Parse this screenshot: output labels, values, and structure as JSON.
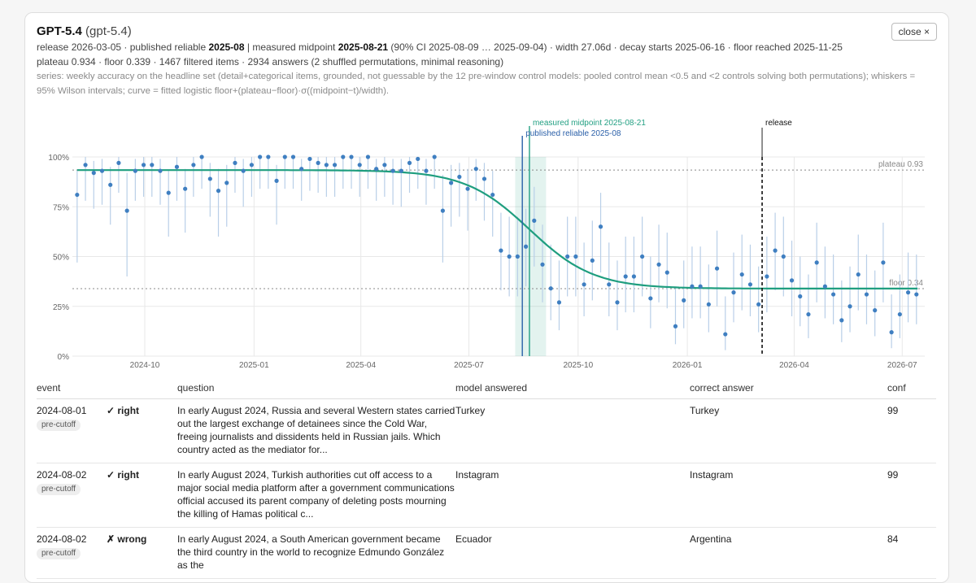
{
  "header": {
    "model_name": "GPT-5.4",
    "model_id": "(gpt-5.4)",
    "close_label": "close ×",
    "line1": {
      "release_prefix": "release 2026-03-05 · published reliable ",
      "published_reliable": "2025-08",
      "sep": " | measured midpoint ",
      "midpoint": "2025-08-21",
      "rest": " (90% CI 2025-08-09 … 2025-09-04) · width 27.06d · decay starts 2025-06-16 · floor reached 2025-11-25"
    },
    "line2": "plateau 0.934 · floor 0.339 · 1467 filtered items · 2934 answers (2 shuffled permutations, minimal reasoning)",
    "series_note": "series: weekly accuracy on the headline set (detail+categorical items, grounded, not guessable by the 12 pre-window control models: pooled control mean <0.5 and <2 controls solving both permutations); whiskers = 95% Wilson intervals; curve = fitted logistic floor+(plateau−floor)·σ((midpoint−t)/width)."
  },
  "chart_data": {
    "type": "scatter",
    "x_ticks": [
      "2024-10",
      "2025-01",
      "2025-04",
      "2025-07",
      "2025-10",
      "2026-01",
      "2026-04",
      "2026-07"
    ],
    "y_ticks": [
      "0%",
      "25%",
      "50%",
      "75%",
      "100%"
    ],
    "ylim": [
      0,
      1
    ],
    "xlim": [
      "2024-08-01",
      "2026-07-20"
    ],
    "plateau": 0.934,
    "floor": 0.339,
    "plateau_label": "plateau 0.93",
    "floor_label": "floor 0.34",
    "midpoint": "2025-08-21",
    "midpoint_ci": [
      "2025-08-09",
      "2025-09-04"
    ],
    "width_days": 27.06,
    "decay_start": "2025-06-16",
    "floor_reached": "2025-11-25",
    "published_reliable": "2025-08-15",
    "release": "2026-03-05",
    "midpoint_label": "measured midpoint 2025-08-21",
    "published_label": "published reliable 2025-08",
    "release_label": "release",
    "colors": {
      "points": "#3f7fc1",
      "whisker": "#b9cfe8",
      "curve": "#1f9e7f",
      "midpoint": "#23a083",
      "published": "#2a5fa8",
      "release": "#111111",
      "grid": "#e8e8e8"
    },
    "points": [
      [
        "2024-08-05",
        0.81,
        0.47,
        0.93
      ],
      [
        "2024-08-12",
        0.96,
        0.78,
        1.0
      ],
      [
        "2024-08-19",
        0.92,
        0.74,
        0.98
      ],
      [
        "2024-08-26",
        0.93,
        0.76,
        0.99
      ],
      [
        "2024-09-02",
        0.86,
        0.66,
        0.95
      ],
      [
        "2024-09-09",
        0.97,
        0.82,
        1.0
      ],
      [
        "2024-09-16",
        0.73,
        0.4,
        0.92
      ],
      [
        "2024-09-23",
        0.93,
        0.78,
        0.99
      ],
      [
        "2024-09-30",
        0.96,
        0.8,
        1.0
      ],
      [
        "2024-10-07",
        0.96,
        0.8,
        1.0
      ],
      [
        "2024-10-14",
        0.93,
        0.76,
        0.99
      ],
      [
        "2024-10-21",
        0.82,
        0.6,
        0.93
      ],
      [
        "2024-10-28",
        0.95,
        0.78,
        1.0
      ],
      [
        "2024-11-04",
        0.84,
        0.62,
        0.94
      ],
      [
        "2024-11-11",
        0.96,
        0.8,
        1.0
      ],
      [
        "2024-11-18",
        1.0,
        0.84,
        1.0
      ],
      [
        "2024-11-25",
        0.89,
        0.7,
        0.97
      ],
      [
        "2024-12-02",
        0.83,
        0.6,
        0.94
      ],
      [
        "2024-12-09",
        0.87,
        0.65,
        0.96
      ],
      [
        "2024-12-16",
        0.97,
        0.82,
        1.0
      ],
      [
        "2024-12-23",
        0.93,
        0.75,
        0.99
      ],
      [
        "2024-12-30",
        0.96,
        0.8,
        1.0
      ],
      [
        "2025-01-06",
        1.0,
        0.84,
        1.0
      ],
      [
        "2025-01-13",
        1.0,
        0.84,
        1.0
      ],
      [
        "2025-01-20",
        0.88,
        0.66,
        0.96
      ],
      [
        "2025-01-27",
        1.0,
        0.84,
        1.0
      ],
      [
        "2025-02-03",
        1.0,
        0.84,
        1.0
      ],
      [
        "2025-02-10",
        0.94,
        0.78,
        0.99
      ],
      [
        "2025-02-17",
        0.99,
        0.83,
        1.0
      ],
      [
        "2025-02-24",
        0.97,
        0.82,
        1.0
      ],
      [
        "2025-03-03",
        0.96,
        0.8,
        1.0
      ],
      [
        "2025-03-10",
        0.96,
        0.8,
        1.0
      ],
      [
        "2025-03-17",
        1.0,
        0.84,
        1.0
      ],
      [
        "2025-03-24",
        1.0,
        0.84,
        1.0
      ],
      [
        "2025-03-31",
        0.96,
        0.8,
        1.0
      ],
      [
        "2025-04-07",
        1.0,
        0.84,
        1.0
      ],
      [
        "2025-04-14",
        0.94,
        0.78,
        0.99
      ],
      [
        "2025-04-21",
        0.96,
        0.8,
        1.0
      ],
      [
        "2025-04-28",
        0.93,
        0.76,
        0.99
      ],
      [
        "2025-05-05",
        0.93,
        0.75,
        0.99
      ],
      [
        "2025-05-12",
        0.97,
        0.82,
        1.0
      ],
      [
        "2025-05-19",
        0.99,
        0.84,
        1.0
      ],
      [
        "2025-05-26",
        0.93,
        0.76,
        0.99
      ],
      [
        "2025-06-02",
        1.0,
        0.84,
        1.0
      ],
      [
        "2025-06-09",
        0.73,
        0.47,
        0.91
      ],
      [
        "2025-06-16",
        0.87,
        0.65,
        0.96
      ],
      [
        "2025-06-23",
        0.9,
        0.7,
        0.97
      ],
      [
        "2025-06-30",
        0.84,
        0.63,
        0.94
      ],
      [
        "2025-07-07",
        0.94,
        0.78,
        0.99
      ],
      [
        "2025-07-14",
        0.89,
        0.68,
        0.97
      ],
      [
        "2025-07-21",
        0.81,
        0.6,
        0.93
      ],
      [
        "2025-07-28",
        0.53,
        0.33,
        0.72
      ],
      [
        "2025-08-04",
        0.5,
        0.3,
        0.7
      ],
      [
        "2025-08-11",
        0.5,
        0.3,
        0.7
      ],
      [
        "2025-08-18",
        0.55,
        0.35,
        0.74
      ],
      [
        "2025-08-25",
        0.68,
        0.45,
        0.85
      ],
      [
        "2025-09-01",
        0.46,
        0.27,
        0.66
      ],
      [
        "2025-09-08",
        0.34,
        0.18,
        0.56
      ],
      [
        "2025-09-15",
        0.27,
        0.13,
        0.48
      ],
      [
        "2025-09-22",
        0.5,
        0.3,
        0.7
      ],
      [
        "2025-09-29",
        0.5,
        0.3,
        0.7
      ],
      [
        "2025-10-06",
        0.36,
        0.2,
        0.57
      ],
      [
        "2025-10-13",
        0.48,
        0.28,
        0.68
      ],
      [
        "2025-10-20",
        0.65,
        0.42,
        0.82
      ],
      [
        "2025-10-27",
        0.36,
        0.2,
        0.57
      ],
      [
        "2025-11-03",
        0.27,
        0.13,
        0.48
      ],
      [
        "2025-11-10",
        0.4,
        0.22,
        0.6
      ],
      [
        "2025-11-17",
        0.4,
        0.22,
        0.6
      ],
      [
        "2025-11-24",
        0.5,
        0.3,
        0.7
      ],
      [
        "2025-12-01",
        0.29,
        0.14,
        0.5
      ],
      [
        "2025-12-08",
        0.46,
        0.27,
        0.66
      ],
      [
        "2025-12-15",
        0.42,
        0.24,
        0.62
      ],
      [
        "2025-12-22",
        0.15,
        0.06,
        0.34
      ],
      [
        "2025-12-29",
        0.28,
        0.14,
        0.48
      ],
      [
        "2026-01-05",
        0.35,
        0.19,
        0.55
      ],
      [
        "2026-01-12",
        0.35,
        0.19,
        0.55
      ],
      [
        "2026-01-19",
        0.26,
        0.12,
        0.46
      ],
      [
        "2026-01-26",
        0.44,
        0.25,
        0.63
      ],
      [
        "2026-02-02",
        0.11,
        0.03,
        0.3
      ],
      [
        "2026-02-09",
        0.32,
        0.17,
        0.52
      ],
      [
        "2026-02-16",
        0.41,
        0.23,
        0.61
      ],
      [
        "2026-02-23",
        0.36,
        0.2,
        0.56
      ],
      [
        "2026-03-02",
        0.26,
        0.12,
        0.45
      ],
      [
        "2026-03-09",
        0.4,
        0.22,
        0.6
      ],
      [
        "2026-03-16",
        0.53,
        0.33,
        0.72
      ],
      [
        "2026-03-23",
        0.5,
        0.3,
        0.7
      ],
      [
        "2026-03-30",
        0.38,
        0.2,
        0.58
      ],
      [
        "2026-04-06",
        0.3,
        0.15,
        0.5
      ],
      [
        "2026-04-13",
        0.21,
        0.09,
        0.41
      ],
      [
        "2026-04-20",
        0.47,
        0.27,
        0.67
      ],
      [
        "2026-04-27",
        0.35,
        0.19,
        0.55
      ],
      [
        "2026-05-04",
        0.31,
        0.16,
        0.51
      ],
      [
        "2026-05-11",
        0.18,
        0.07,
        0.38
      ],
      [
        "2026-05-18",
        0.25,
        0.12,
        0.45
      ],
      [
        "2026-05-25",
        0.41,
        0.23,
        0.61
      ],
      [
        "2026-06-01",
        0.31,
        0.16,
        0.51
      ],
      [
        "2026-06-08",
        0.23,
        0.1,
        0.43
      ],
      [
        "2026-06-15",
        0.47,
        0.27,
        0.67
      ],
      [
        "2026-06-22",
        0.12,
        0.04,
        0.31
      ],
      [
        "2026-06-29",
        0.21,
        0.09,
        0.41
      ],
      [
        "2026-07-06",
        0.32,
        0.17,
        0.52
      ],
      [
        "2026-07-13",
        0.31,
        0.16,
        0.51
      ]
    ]
  },
  "table": {
    "headers": {
      "event": "event",
      "result": "",
      "question": "question",
      "model": "model answered",
      "correct": "correct answer",
      "conf": "conf"
    },
    "rows": [
      {
        "event": "2024-08-01",
        "tag": "pre-cutoff",
        "result": "✓ right",
        "question": "In early August 2024, Russia and several Western states carried out the largest exchange of detainees since the Cold War, freeing journalists and dissidents held in Russian jails. Which country acted as the mediator for...",
        "model": "Turkey",
        "correct": "Turkey",
        "conf": "99"
      },
      {
        "event": "2024-08-02",
        "tag": "pre-cutoff",
        "result": "✓ right",
        "question": "In early August 2024, Turkish authorities cut off access to a major social media platform after a government communications official accused its parent company of deleting posts mourning the killing of Hamas political c...",
        "model": "Instagram",
        "correct": "Instagram",
        "conf": "99"
      },
      {
        "event": "2024-08-02",
        "tag": "pre-cutoff",
        "result": "✗ wrong",
        "question": "In early August 2024, a South American government became the third country in the world to recognize Edmundo González as the",
        "model": "Ecuador",
        "correct": "Argentina",
        "conf": "84"
      }
    ]
  }
}
